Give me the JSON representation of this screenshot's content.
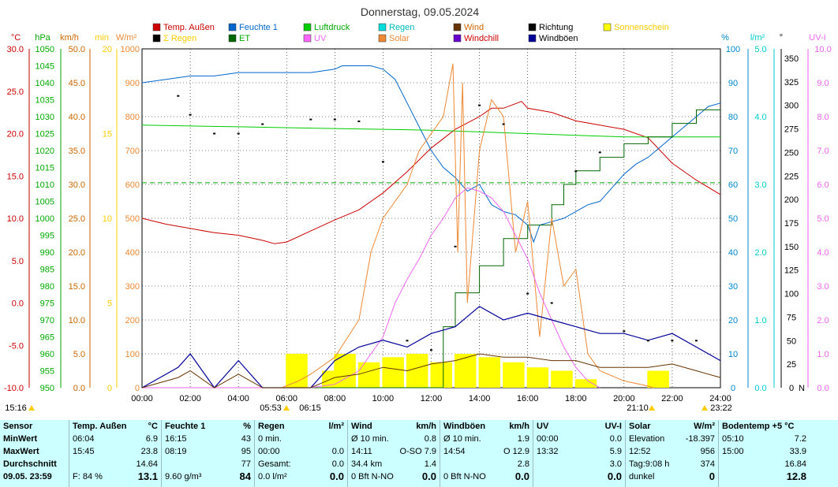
{
  "title": "Donnerstag, 09.05.2024",
  "colors": {
    "temp": "#cc0000",
    "feuchte": "#0066cc",
    "luftdruck": "#00cc00",
    "regen": "#00cccc",
    "wind": "#663300",
    "richtung": "#000000",
    "sonnenschein": "#ffff00",
    "sum_regen": "#ffcc00",
    "et": "#006600",
    "uv": "#ee66ee",
    "solar": "#ee8833",
    "windchill": "#6600cc",
    "windboeen": "#000099",
    "grid": "#000000",
    "stats_bg": "#ccffff"
  },
  "legend": [
    {
      "label": "Temp. Außen",
      "color": "#cc0000",
      "text_color": "#cc0000"
    },
    {
      "label": "Feuchte 1",
      "color": "#0066cc",
      "text_color": "#0066cc"
    },
    {
      "label": "Luftdruck",
      "color": "#00cc00",
      "text_color": "#00aa00"
    },
    {
      "label": "Regen",
      "color": "#00dddd",
      "text_color": "#00bbbb"
    },
    {
      "label": "Wind",
      "color": "#663300",
      "text_color": "#cc6600"
    },
    {
      "label": "Richtung",
      "color": "#000000",
      "text_color": "#000000"
    },
    {
      "label": "Sonnenschein",
      "color": "#ffff00",
      "text_color": "#ffcc00"
    },
    {
      "label": "Σ Regen",
      "color": "#000000",
      "text_color": "#ffcc00"
    },
    {
      "label": "ET",
      "color": "#006600",
      "text_color": "#00aa00"
    },
    {
      "label": "UV",
      "color": "#ff66ff",
      "text_color": "#ee66ee"
    },
    {
      "label": "Solar",
      "color": "#ee8833",
      "text_color": "#ee8833"
    },
    {
      "label": "Windchill",
      "color": "#6600cc",
      "text_color": "#cc0000"
    },
    {
      "label": "Windböen",
      "color": "#000099",
      "text_color": "#000000"
    }
  ],
  "axes": {
    "temp": {
      "unit": "°C",
      "ticks": [
        "30.0",
        "25.0",
        "20.0",
        "15.0",
        "10.0",
        "5.0",
        "0.0",
        "-5.0",
        "-10.0"
      ]
    },
    "pressure": {
      "unit": "hPa",
      "ticks": [
        "1050",
        "1045",
        "1040",
        "1035",
        "1030",
        "1025",
        "1020",
        "1015",
        "1010",
        "1005",
        "1000",
        "995",
        "990",
        "985",
        "980",
        "975",
        "970",
        "965",
        "960",
        "955",
        "950"
      ]
    },
    "wind": {
      "unit": "km/h",
      "ticks": [
        "50.0",
        "45.0",
        "40.0",
        "35.0",
        "30.0",
        "25.0",
        "20.0",
        "15.0",
        "10.0",
        "5.0",
        "0.0"
      ]
    },
    "minutes": {
      "unit": "min",
      "ticks": [
        "20",
        "15",
        "10",
        "5",
        "0"
      ]
    },
    "solar": {
      "unit": "W/m²",
      "ticks": [
        "1000",
        "900",
        "800",
        "700",
        "600",
        "500",
        "400",
        "300",
        "200",
        "100",
        "0"
      ]
    },
    "humidity": {
      "unit": "%",
      "ticks": [
        "100",
        "90",
        "80",
        "70",
        "60",
        "50",
        "40",
        "30",
        "20",
        "10",
        "0"
      ]
    },
    "rain": {
      "unit": "l/m²",
      "ticks": [
        "5.0",
        "4.0",
        "3.0",
        "2.0",
        "1.0",
        "0.0"
      ]
    },
    "direction": {
      "unit": "°",
      "ticks": [
        "350",
        "325",
        "300",
        "275",
        "250",
        "225",
        "200",
        "175",
        "150",
        "125",
        "100",
        "75",
        "50",
        "25",
        "0"
      ],
      "zero_label": "N"
    },
    "uv": {
      "unit": "UV-I",
      "ticks": [
        "10.0",
        "9.0",
        "8.0",
        "7.0",
        "6.0",
        "5.0",
        "4.0",
        "3.0",
        "2.0",
        "1.0",
        "0.0"
      ]
    },
    "time": {
      "ticks": [
        "00:00",
        "02:00",
        "04:00",
        "06:00",
        "08:00",
        "10:00",
        "12:00",
        "14:00",
        "16:00",
        "18:00",
        "20:00",
        "22:00",
        "24:00"
      ]
    }
  },
  "sun_labels": {
    "left": "15:16",
    "sunrise": "05:53",
    "sunrise2": "06:15",
    "sunset": "21:10",
    "sunset2": "23:22"
  },
  "chart_data": {
    "type": "line",
    "title": "Donnerstag, 09.05.2024",
    "x_unit": "hours",
    "xlim": [
      0,
      24
    ],
    "series": [
      {
        "name": "Temp. Außen",
        "axis": "°C",
        "ylim": [
          -10,
          30
        ],
        "x": [
          0,
          1,
          2,
          3,
          4,
          5,
          5.5,
          6,
          7,
          8,
          9,
          10,
          11,
          12,
          13,
          14,
          14.5,
          15,
          15.75,
          16,
          17,
          18,
          19,
          20,
          21,
          22,
          23,
          24
        ],
        "y": [
          10.0,
          9.3,
          8.8,
          8.3,
          8.0,
          7.4,
          7.0,
          7.2,
          8.5,
          9.8,
          11.0,
          13.0,
          15.5,
          18.3,
          20.5,
          22.0,
          23.0,
          23.0,
          23.8,
          23.0,
          22.5,
          21.5,
          21.0,
          20.5,
          19.5,
          16.5,
          14.5,
          12.8
        ]
      },
      {
        "name": "Feuchte 1",
        "axis": "%",
        "ylim": [
          0,
          100
        ],
        "x": [
          0,
          1,
          2,
          3,
          4,
          5,
          6,
          7,
          8,
          8.3,
          9,
          9.5,
          10,
          10.5,
          11,
          11.5,
          12,
          12.5,
          13,
          13.5,
          14,
          14.5,
          15,
          15.5,
          16,
          16.25,
          16.5,
          17,
          17.5,
          18,
          18.5,
          19,
          19.5,
          20,
          20.5,
          21,
          21.5,
          22,
          22.5,
          23,
          23.5,
          24
        ],
        "y": [
          90,
          91,
          92,
          92,
          93,
          93,
          93,
          93,
          94,
          95,
          95,
          95,
          94,
          91,
          84,
          77,
          70,
          65,
          62,
          58,
          60,
          54,
          52,
          51,
          48,
          43,
          48,
          49,
          50,
          52,
          54,
          55,
          59,
          63,
          66,
          68,
          71,
          74,
          77,
          80,
          83,
          84
        ]
      },
      {
        "name": "Luftdruck",
        "axis": "hPa",
        "ylim": [
          950,
          1050
        ],
        "x": [
          0,
          4,
          8,
          12,
          16,
          20,
          24
        ],
        "y": [
          1027.5,
          1027,
          1026.5,
          1026,
          1025,
          1024,
          1024
        ]
      },
      {
        "name": "ET",
        "axis": "l/m²",
        "ylim": [
          0,
          5
        ],
        "x": [
          0,
          12,
          12.5,
          13,
          14,
          15,
          16,
          17,
          17.5,
          18,
          19,
          20,
          21,
          22,
          23,
          24
        ],
        "y": [
          0,
          0,
          0.9,
          1.4,
          1.8,
          2.2,
          2.4,
          2.7,
          3.0,
          3.2,
          3.4,
          3.6,
          3.7,
          3.9,
          4.1,
          4.1
        ]
      },
      {
        "name": "Solar",
        "axis": "W/m²",
        "ylim": [
          0,
          1000
        ],
        "x": [
          0,
          5.8,
          6.5,
          7,
          8,
          9,
          9.5,
          10,
          10.5,
          11,
          11.5,
          12,
          12.5,
          12.9,
          13.1,
          13.3,
          13.5,
          14,
          14.5,
          15,
          15.5,
          16,
          16.5,
          17,
          17.5,
          18,
          18.5,
          19,
          20,
          21,
          21.2
        ],
        "y": [
          0,
          0,
          20,
          40,
          90,
          200,
          400,
          500,
          550,
          600,
          700,
          750,
          800,
          956,
          400,
          900,
          250,
          700,
          850,
          800,
          400,
          550,
          150,
          500,
          300,
          350,
          100,
          50,
          20,
          5,
          0
        ]
      },
      {
        "name": "UV",
        "axis": "UV-I",
        "ylim": [
          0,
          10
        ],
        "x": [
          0,
          7,
          8,
          9,
          10,
          10.5,
          11,
          11.5,
          12,
          12.5,
          13,
          13.5,
          14,
          14.5,
          15,
          15.5,
          16,
          16.5,
          17,
          17.5,
          18,
          18.5,
          19
        ],
        "y": [
          0,
          0,
          0.1,
          0.5,
          1.5,
          2.5,
          3.2,
          3.8,
          4.5,
          5.0,
          5.6,
          5.9,
          5.8,
          5.6,
          5.2,
          4.5,
          3.8,
          2.8,
          2.0,
          1.2,
          0.6,
          0.2,
          0
        ]
      },
      {
        "name": "Windböen",
        "axis": "km/h",
        "ylim": [
          0,
          50
        ],
        "x": [
          0,
          1.5,
          2,
          3,
          4,
          5,
          6,
          7,
          8,
          9,
          10,
          11,
          12,
          13,
          14,
          15,
          16,
          17,
          18,
          19,
          20,
          21,
          22,
          23,
          24
        ],
        "y": [
          0,
          3,
          5,
          0,
          4,
          0,
          0,
          0,
          4,
          6,
          7,
          6,
          8,
          9,
          12,
          10,
          11,
          10,
          9,
          8,
          8,
          7,
          8,
          6,
          4
        ]
      },
      {
        "name": "Wind",
        "axis": "km/h",
        "ylim": [
          0,
          50
        ],
        "x": [
          0,
          1.5,
          2,
          3,
          4,
          5,
          6,
          7,
          8,
          9,
          10,
          11,
          12,
          13,
          14,
          15,
          16,
          17,
          18,
          19,
          20,
          21,
          22,
          23,
          24
        ],
        "y": [
          0,
          1.5,
          2.5,
          0,
          2,
          0,
          0,
          0,
          1.5,
          2,
          3,
          2.5,
          3.5,
          4,
          5,
          4.5,
          4.5,
          4,
          4,
          3,
          3,
          3,
          3.5,
          2.5,
          1.5
        ]
      },
      {
        "name": "Richtung",
        "axis": "°",
        "ylim": [
          0,
          360
        ],
        "x": [
          1.5,
          2,
          3,
          4,
          5,
          7,
          8,
          9,
          10,
          11,
          12,
          13,
          14,
          15,
          16,
          17,
          18,
          19,
          20,
          21,
          22,
          23
        ],
        "y": [
          310,
          290,
          270,
          270,
          280,
          285,
          285,
          283,
          240,
          50,
          40,
          150,
          300,
          280,
          100,
          90,
          230,
          250,
          60,
          50,
          50,
          50
        ]
      }
    ],
    "sunshine_minutes": {
      "axis": "min",
      "ylim": [
        0,
        20
      ],
      "x": [
        6.0,
        7.5,
        8,
        9,
        10,
        11,
        12,
        13,
        14,
        15,
        16,
        17,
        18,
        21.0
      ],
      "y": [
        2,
        1,
        2,
        1.5,
        1.8,
        2,
        1.5,
        2,
        1.8,
        1.5,
        1.2,
        1,
        0.5,
        1
      ]
    },
    "stats": {
      "sensor": {
        "hdr": "Sensor",
        "rows": [
          "MinWert",
          "MaxWert",
          "Durchschnitt",
          "09.05.  23:59"
        ]
      },
      "temp": {
        "hdr": "Temp. Außen",
        "unit": "°C",
        "min_t": "06:04",
        "min_v": "6.9",
        "max_t": "15:45",
        "max_v": "23.8",
        "avg": "14.64",
        "extra": "F: 84 %",
        "cur": "13.1"
      },
      "feuchte": {
        "hdr": "Feuchte 1",
        "unit": "%",
        "min_t": "16:15",
        "min_v": "43",
        "max_t": "08:19",
        "max_v": "95",
        "avg": "77",
        "extra": "9.60 g/m³",
        "cur": "84"
      },
      "regen": {
        "hdr": "Regen",
        "unit": "l/m²",
        "r1a": "0 min.",
        "r2a": "00:00",
        "r2b": "0.0",
        "r3a": "Gesamt:",
        "r3b": "0.0",
        "extra": "0.0 l/m²",
        "cur": "0.0"
      },
      "wind": {
        "hdr": "Wind",
        "unit": "km/h",
        "r1a": "Ø 10 min.",
        "r1b": "0.8",
        "r2a": "14:11",
        "r2b": "O-SO 7.9",
        "r3a": "34.4 km",
        "r3b": "1.4",
        "extra": "0 Bft N-NO",
        "cur": "0.0"
      },
      "boeen": {
        "hdr": "Windböen",
        "unit": "km/h",
        "r1a": "Ø 10 min.",
        "r1b": "1.9",
        "r2a": "14:54",
        "r2b": "O 12.9",
        "r3b": "2.8",
        "extra": "0 Bft N-NO",
        "cur": "0.0"
      },
      "uv": {
        "hdr": "UV",
        "unit": "UV-I",
        "r1a": "00:00",
        "r1b": "0.0",
        "r2a": "13:32",
        "r2b": "5.9",
        "r3b": "3.0",
        "cur": "0.0"
      },
      "solar": {
        "hdr": "Solar",
        "unit": "W/m²",
        "r1a": "Elevation",
        "r1b": "-18.397",
        "r2a": "12:52",
        "r2b": "956",
        "r3a": "Tag:9:08 h",
        "r3b": "374",
        "extra": "dunkel",
        "cur": "0"
      },
      "boden": {
        "hdr": "Bodentemp +5  °C",
        "r1a": "05:10",
        "r1b": "7.2",
        "r2a": "15:00",
        "r2b": "33.9",
        "r3b": "16.84",
        "cur": "12.8"
      }
    }
  }
}
